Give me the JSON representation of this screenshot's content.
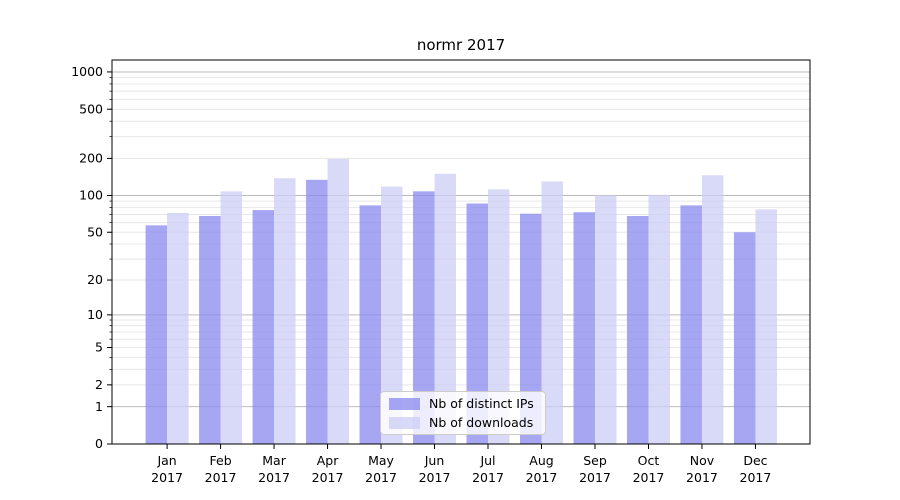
{
  "chart_data": {
    "type": "bar",
    "title": "normr 2017",
    "categories": [
      "Jan",
      "Feb",
      "Mar",
      "Apr",
      "May",
      "Jun",
      "Jul",
      "Aug",
      "Sep",
      "Oct",
      "Nov",
      "Dec"
    ],
    "x_tick_second_line": "2017",
    "series": [
      {
        "name": "Nb of distinct IPs",
        "color": "#8888ee",
        "alpha": 0.75,
        "values": [
          57,
          68,
          76,
          134,
          83,
          108,
          86,
          71,
          73,
          68,
          83,
          50
        ]
      },
      {
        "name": "Nb of downloads",
        "color": "#ccccf5",
        "alpha": 0.75,
        "values": [
          72,
          108,
          138,
          198,
          118,
          150,
          112,
          130,
          100,
          101,
          146,
          77
        ]
      }
    ],
    "yscale": "log1p",
    "yticks": [
      0,
      1,
      2,
      5,
      10,
      20,
      50,
      100,
      200,
      500,
      1000
    ],
    "ylim": [
      0,
      1270
    ],
    "xlabel": "",
    "ylabel": "",
    "grid": true,
    "legend_position": "lower center",
    "colors": {
      "major_grid": "#bbbbbb",
      "minor_grid": "#e7e7e7",
      "spine": "#000000",
      "tick_label": "#000000"
    }
  }
}
